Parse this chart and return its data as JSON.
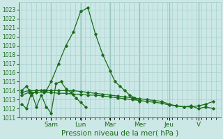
{
  "xlabel": "Pression niveau de la mer( hPa )",
  "ylim": [
    1011,
    1023.8
  ],
  "yticks": [
    1011,
    1012,
    1013,
    1014,
    1015,
    1016,
    1017,
    1018,
    1019,
    1020,
    1021,
    1022,
    1023
  ],
  "bg_color": "#cce8e6",
  "grid_color": "#a8d0ce",
  "line_color": "#1a6b1a",
  "vline_color": "#7aaa9a",
  "x_day_labels": [
    "Sam",
    "Lun",
    "Mar",
    "Mer",
    "Jeu",
    "V"
  ],
  "x_day_positions": [
    2,
    4,
    6,
    8,
    10,
    12
  ],
  "xlim": [
    -0.2,
    13.5
  ],
  "series1_x": [
    0,
    0.33,
    0.67,
    1.0,
    1.33,
    1.67,
    2.0,
    2.33,
    2.67,
    3.0,
    3.33,
    3.67,
    4.0,
    4.33
  ],
  "series1_y": [
    1012.5,
    1012.0,
    1013.8,
    1012.2,
    1013.5,
    1012.2,
    1011.5,
    1014.8,
    1015.0,
    1014.2,
    1013.8,
    1013.2,
    1012.7,
    1012.2
  ],
  "series2_x": [
    0,
    0.33,
    0.67,
    1.0,
    1.33,
    1.67,
    2.0,
    2.5,
    3.0,
    3.5,
    4.0,
    4.5,
    5.0,
    5.5,
    6.0,
    6.33,
    6.67,
    7.0,
    7.33,
    7.67,
    8.0
  ],
  "series2_y": [
    1014.0,
    1014.5,
    1013.5,
    1014.0,
    1014.0,
    1014.0,
    1015.0,
    1017.0,
    1019.0,
    1020.5,
    1022.8,
    1023.2,
    1020.3,
    1018.0,
    1016.2,
    1015.0,
    1014.5,
    1014.0,
    1013.5,
    1013.2,
    1012.8
  ],
  "series3_x": [
    0,
    0.5,
    1.0,
    1.5,
    2.0,
    2.5,
    3.0,
    3.5,
    4.0,
    4.5,
    5.0,
    5.5,
    6.0,
    6.5,
    7.0,
    7.5,
    8.0,
    8.5,
    9.0,
    9.5,
    10.0,
    10.5,
    11.0,
    11.5,
    12.0,
    12.5,
    13.0
  ],
  "series3_y": [
    1013.8,
    1014.0,
    1014.0,
    1014.0,
    1014.0,
    1014.0,
    1014.0,
    1014.0,
    1013.9,
    1013.8,
    1013.7,
    1013.6,
    1013.5,
    1013.4,
    1013.3,
    1013.2,
    1013.1,
    1013.0,
    1012.9,
    1012.8,
    1012.5,
    1012.3,
    1012.2,
    1012.3,
    1012.0,
    1012.2,
    1012.0
  ],
  "series4_x": [
    0,
    0.5,
    1.0,
    1.5,
    2.0,
    2.5,
    3.0,
    3.5,
    4.0,
    4.5,
    5.0,
    5.5,
    6.0,
    6.5,
    7.0,
    7.5,
    8.0,
    8.5,
    9.0,
    9.5,
    10.0,
    10.5,
    11.0,
    11.5,
    12.0,
    12.5,
    13.0
  ],
  "series4_y": [
    1013.5,
    1013.8,
    1013.8,
    1013.8,
    1013.8,
    1013.7,
    1013.7,
    1013.6,
    1013.6,
    1013.5,
    1013.5,
    1013.4,
    1013.3,
    1013.2,
    1013.1,
    1013.0,
    1012.9,
    1012.8,
    1012.7,
    1012.6,
    1012.4,
    1012.3,
    1012.2,
    1012.2,
    1012.3,
    1012.5,
    1012.8
  ],
  "linewidth": 0.9,
  "markersize": 1.8,
  "xlabel_fontsize": 7.5,
  "ytick_fontsize": 5.5,
  "xtick_fontsize": 6.5
}
